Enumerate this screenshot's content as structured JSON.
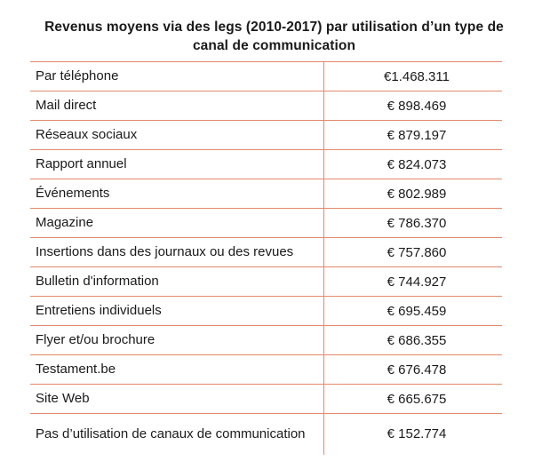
{
  "title": {
    "line1": "Revenus moyens via des legs (2010-2017) par utilisation d’un type de",
    "line2": "canal de communication"
  },
  "colors": {
    "border": "#e4896a",
    "text": "#1a1a1a",
    "background": "#ffffff"
  },
  "rows": [
    {
      "label": "Par téléphone",
      "value": "€1.468.311"
    },
    {
      "label": "Mail direct",
      "value": "€ 898.469"
    },
    {
      "label": "Réseaux sociaux",
      "value": "€ 879.197"
    },
    {
      "label": "Rapport annuel",
      "value": "€ 824.073"
    },
    {
      "label": "Événements",
      "value": "€ 802.989"
    },
    {
      "label": "Magazine",
      "value": "€ 786.370"
    },
    {
      "label": "Insertions dans des journaux ou des revues",
      "value": "€ 757.860"
    },
    {
      "label": "Bulletin d'information",
      "value": "€ 744.927"
    },
    {
      "label": "Entretiens individuels",
      "value": "€ 695.459"
    },
    {
      "label": "Flyer et/ou brochure",
      "value": "€ 686.355"
    },
    {
      "label": "Testament.be",
      "value": "€ 676.478"
    },
    {
      "label": "Site Web",
      "value": "€ 665.675"
    },
    {
      "label": "Pas d’utilisation de canaux de communication",
      "value": "€ 152.774"
    }
  ]
}
